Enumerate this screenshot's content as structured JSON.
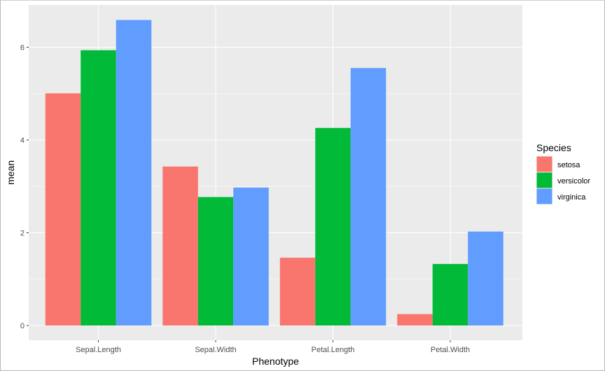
{
  "chart_data": {
    "type": "bar",
    "title": "",
    "xlabel": "Phenotype",
    "ylabel": "mean",
    "categories": [
      "Sepal.Length",
      "Sepal.Width",
      "Petal.Length",
      "Petal.Width"
    ],
    "series": [
      {
        "name": "setosa",
        "color": "#F8766D",
        "values": [
          5.006,
          3.428,
          1.462,
          0.246
        ]
      },
      {
        "name": "versicolor",
        "color": "#00BA38",
        "values": [
          5.936,
          2.77,
          4.26,
          1.326
        ]
      },
      {
        "name": "virginica",
        "color": "#619CFF",
        "values": [
          6.588,
          2.974,
          5.552,
          2.026
        ]
      }
    ],
    "ylim": [
      0,
      6.9
    ],
    "yticks": [
      "0",
      "2",
      "4",
      "6"
    ],
    "grid": true,
    "legend": {
      "title": "Species",
      "placement": "right"
    },
    "panel_background": "#EBEBEB",
    "grid_color": "#FFFFFF"
  }
}
